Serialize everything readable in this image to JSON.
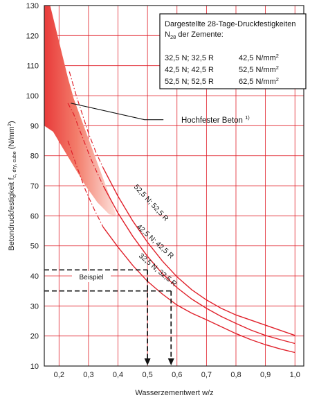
{
  "chart_data": {
    "type": "line",
    "xlabel": "Wasserzementwert w/z",
    "ylabel_main": "Betondruckfestigkeit f",
    "ylabel_sub": "c, dry, cube",
    "ylabel_unit": " (N/mm",
    "ylabel_sup": "2",
    "ylabel_end": ")",
    "xlim": [
      0.15,
      1.03
    ],
    "ylim": [
      10,
      130
    ],
    "x_ticks": [
      "0,2",
      "0,3",
      "0,4",
      "0,5",
      "0,6",
      "0,7",
      "0,8",
      "0,9",
      "1,0"
    ],
    "x_tick_values": [
      0.2,
      0.3,
      0.4,
      0.5,
      0.6,
      0.7,
      0.8,
      0.9,
      1.0
    ],
    "y_ticks": [
      "10",
      "20",
      "30",
      "40",
      "50",
      "60",
      "70",
      "80",
      "90",
      "100",
      "110",
      "120",
      "130"
    ],
    "y_tick_values": [
      10,
      20,
      30,
      40,
      50,
      60,
      70,
      80,
      90,
      100,
      110,
      120,
      130
    ],
    "grid": true,
    "series": [
      {
        "name": "52,5 N; 52,5 R",
        "x": [
          0.35,
          0.4,
          0.45,
          0.5,
          0.55,
          0.6,
          0.65,
          0.7,
          0.75,
          0.8,
          0.85,
          0.9,
          0.95,
          1.0
        ],
        "y": [
          75.9,
          66.5,
          58.3,
          51.2,
          45.0,
          39.7,
          35.4,
          32.0,
          29.2,
          27.0,
          25.3,
          23.6,
          21.9,
          20.2
        ],
        "dashed_ext_x": [
          0.235,
          0.26,
          0.28,
          0.3,
          0.325,
          0.35
        ],
        "dashed_ext_y": [
          108,
          99.5,
          93.5,
          87.5,
          81.2,
          75.9
        ]
      },
      {
        "name": "42,5 N; 42,5 R",
        "x": [
          0.35,
          0.4,
          0.45,
          0.5,
          0.55,
          0.6,
          0.65,
          0.7,
          0.75,
          0.8,
          0.85,
          0.9,
          0.95,
          1.0
        ],
        "y": [
          70.0,
          60.9,
          53.2,
          46.5,
          40.8,
          36.1,
          32.3,
          29.2,
          26.5,
          24.2,
          22.0,
          20.2,
          18.8,
          17.5
        ],
        "dashed_ext_x": [
          0.23,
          0.25,
          0.27,
          0.29,
          0.31,
          0.33,
          0.35
        ],
        "dashed_ext_y": [
          97.5,
          93.8,
          88.5,
          83.5,
          78.5,
          74.2,
          70.0
        ]
      },
      {
        "name": "32,5 N; 32,5 R",
        "x": [
          0.35,
          0.4,
          0.45,
          0.5,
          0.55,
          0.6,
          0.65,
          0.7,
          0.75,
          0.8,
          0.85,
          0.9,
          0.95,
          1.0
        ],
        "y": [
          56.2,
          49.6,
          43.5,
          38.2,
          34.0,
          30.3,
          27.6,
          25.4,
          23.1,
          20.8,
          18.8,
          17.1,
          15.7,
          14.5
        ],
        "dashed_ext_x": [
          0.23,
          0.26,
          0.29,
          0.32,
          0.35
        ],
        "dashed_ext_y": [
          85.0,
          76.5,
          68.5,
          62.0,
          56.2
        ]
      }
    ],
    "hochfest_band": {
      "left_x": [
        0.15,
        0.16,
        0.17,
        0.18,
        0.19,
        0.2,
        0.21,
        0.22,
        0.23,
        0.24,
        0.25,
        0.255
      ],
      "left_y": [
        130,
        126,
        121,
        117,
        112.5,
        108.5,
        104.5,
        101,
        98,
        95,
        92,
        90.5
      ],
      "right_x": [
        0.17,
        0.18,
        0.19,
        0.2,
        0.21,
        0.22,
        0.23,
        0.235
      ],
      "right_y": [
        130,
        126,
        121.5,
        117.5,
        113.5,
        110,
        106.5,
        105
      ],
      "bottom_x": [
        0.15,
        0.18,
        0.21,
        0.24,
        0.27,
        0.3,
        0.33,
        0.355
      ],
      "bottom_y": [
        90,
        85.5,
        81,
        76,
        71.5,
        67,
        62,
        58
      ]
    },
    "annotation": {
      "text": "Hochfester Beton",
      "sup": "1)",
      "leader_x": [
        0.24,
        0.49,
        0.54
      ],
      "leader_y": [
        97.5,
        92,
        92
      ]
    },
    "example": {
      "label": "Beispiel",
      "y_values": [
        42,
        35
      ],
      "x_values": [
        0.5,
        0.58
      ]
    },
    "legend": {
      "title_line1": "Dargestellte 28-Tage-Druckfestigkeiten",
      "title_line2_pre": "N",
      "title_line2_sub": "28",
      "title_line2_post": " der Zemente:",
      "rows": [
        {
          "cement": "32,5 N; 32,5 R",
          "value": "42,5 N/mm",
          "sup": "2"
        },
        {
          "cement": "42,5 N; 42,5 R",
          "value": "52,5 N/mm",
          "sup": "2"
        },
        {
          "cement": "52,5 N; 52,5 R",
          "value": "62,5 N/mm",
          "sup": "2"
        }
      ],
      "placement": "top-right"
    },
    "colors": {
      "curve": "#e0202a",
      "grid": "#e0202a",
      "frame": "#222222",
      "band_dark": "#e83a3a",
      "band_light": "#fde3de",
      "example": "#111111"
    }
  }
}
